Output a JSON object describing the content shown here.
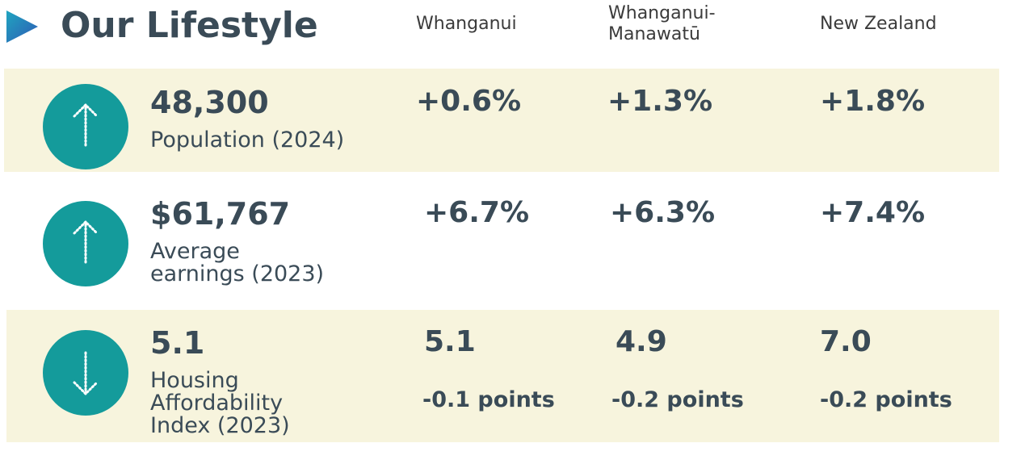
{
  "header": {
    "title": "Our Lifestyle",
    "columns": [
      [
        "Whanganui"
      ],
      [
        "Whanganui-",
        "Manawatū"
      ],
      [
        "New Zealand"
      ]
    ]
  },
  "rows": [
    {
      "headline": "48,300",
      "label": [
        "Population (2024)"
      ],
      "values": [
        "+0.6%",
        "+1.3%",
        "+1.8%"
      ]
    },
    {
      "headline": "$61,767",
      "label": [
        "Average",
        "earnings (2023)"
      ],
      "values": [
        "+6.7%",
        "+6.3%",
        "+7.4%"
      ]
    },
    {
      "headline": "5.1",
      "label": [
        "Housing",
        "Affordability",
        "Index (2023)"
      ],
      "values": [
        "5.1",
        "4.9",
        "7.0"
      ],
      "changes": [
        "-0.1 points",
        "-0.2 points",
        "-0.2 points"
      ]
    }
  ]
}
